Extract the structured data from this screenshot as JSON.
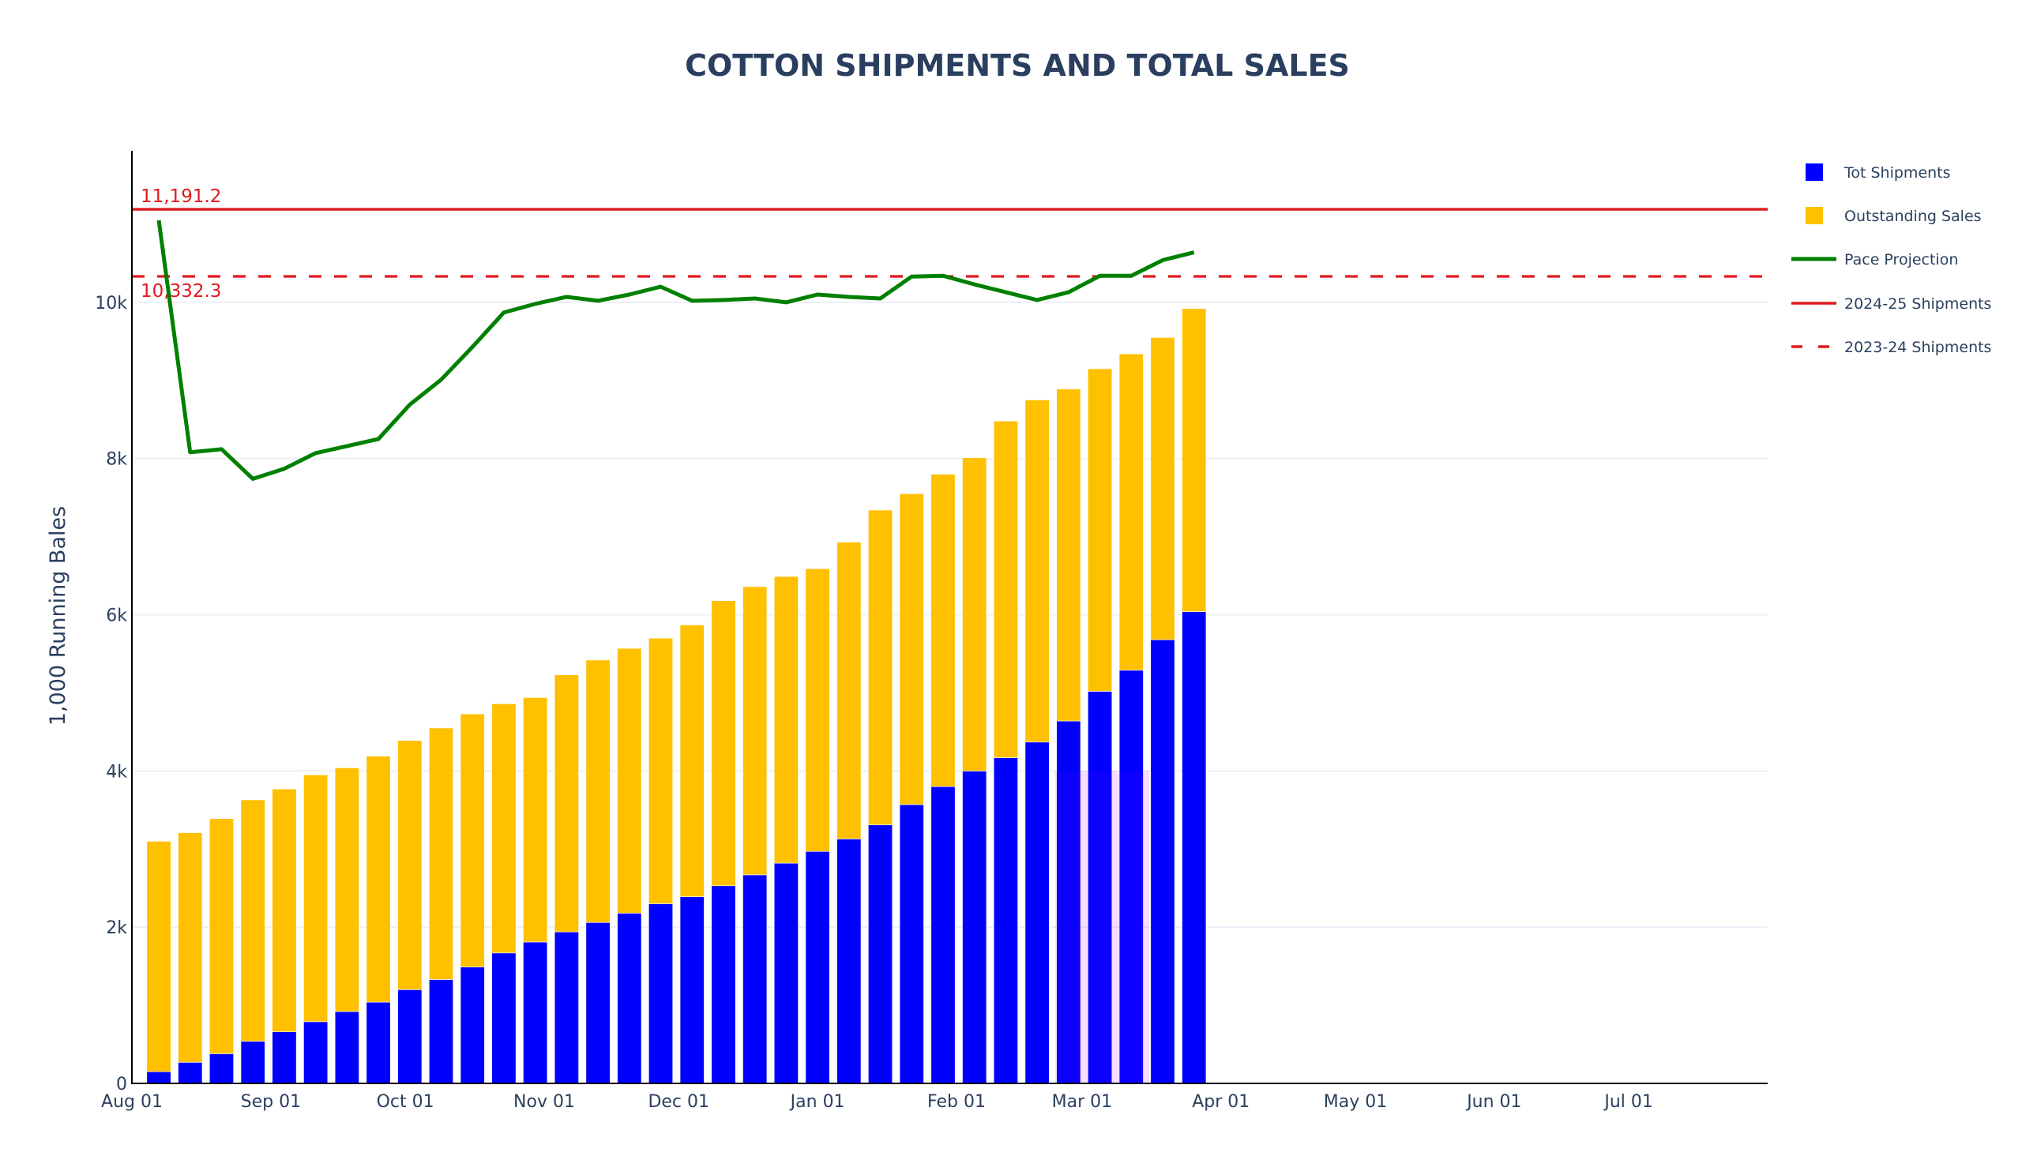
{
  "chart_data": {
    "type": "bar",
    "barmode": "stack",
    "title": "COTTON SHIPMENTS AND TOTAL SALES",
    "xlabel": "",
    "ylabel": "1,000 Running Bales",
    "xlim": [
      "2024-08-01",
      "2025-08-01"
    ],
    "ylim": [
      0,
      11940
    ],
    "grid": true,
    "legend_position": "right",
    "x_ticks": [
      {
        "date": "2024-08-01",
        "label": "Aug 01"
      },
      {
        "date": "2024-09-01",
        "label": "Sep 01"
      },
      {
        "date": "2024-10-01",
        "label": "Oct 01"
      },
      {
        "date": "2024-11-01",
        "label": "Nov 01"
      },
      {
        "date": "2024-12-01",
        "label": "Dec 01"
      },
      {
        "date": "2025-01-01",
        "label": "Jan 01"
      },
      {
        "date": "2025-02-01",
        "label": "Feb 01"
      },
      {
        "date": "2025-03-01",
        "label": "Mar 01"
      },
      {
        "date": "2025-04-01",
        "label": "Apr 01"
      },
      {
        "date": "2025-05-01",
        "label": "May 01"
      },
      {
        "date": "2025-06-01",
        "label": "Jun 01"
      },
      {
        "date": "2025-07-01",
        "label": "Jul 01"
      }
    ],
    "y_ticks": [
      {
        "value": 0,
        "label": "0"
      },
      {
        "value": 2000,
        "label": "2k"
      },
      {
        "value": 4000,
        "label": "4k"
      },
      {
        "value": 6000,
        "label": "6k"
      },
      {
        "value": 8000,
        "label": "8k"
      },
      {
        "value": 10000,
        "label": "10k"
      }
    ],
    "x": [
      "2024-08-07",
      "2024-08-14",
      "2024-08-21",
      "2024-08-28",
      "2024-09-04",
      "2024-09-11",
      "2024-09-18",
      "2024-09-25",
      "2024-10-02",
      "2024-10-09",
      "2024-10-16",
      "2024-10-23",
      "2024-10-30",
      "2024-11-06",
      "2024-11-13",
      "2024-11-20",
      "2024-11-27",
      "2024-12-04",
      "2024-12-11",
      "2024-12-18",
      "2024-12-25",
      "2025-01-01",
      "2025-01-08",
      "2025-01-15",
      "2025-01-22",
      "2025-01-29",
      "2025-02-05",
      "2025-02-12",
      "2025-02-19",
      "2025-02-26",
      "2025-03-05",
      "2025-03-12",
      "2025-03-19",
      "2025-03-26"
    ],
    "series": [
      {
        "name": "Tot Shipments",
        "kind": "bar",
        "color": "#0000ff",
        "values": [
          150,
          270,
          380,
          540,
          660,
          790,
          920,
          1040,
          1200,
          1330,
          1490,
          1670,
          1810,
          1940,
          2060,
          2180,
          2300,
          2390,
          2530,
          2670,
          2820,
          2970,
          3130,
          3310,
          3570,
          3800,
          4000,
          4170,
          4370,
          4640,
          5020,
          5290,
          5680,
          6040
        ]
      },
      {
        "name": "Outstanding Sales",
        "kind": "bar",
        "color": "#ffc000",
        "values": [
          2950,
          2940,
          3010,
          3090,
          3110,
          3160,
          3120,
          3150,
          3190,
          3220,
          3240,
          3190,
          3130,
          3290,
          3360,
          3390,
          3400,
          3480,
          3650,
          3690,
          3670,
          3620,
          3800,
          4030,
          3980,
          4000,
          4010,
          4310,
          4380,
          4250,
          4130,
          4050,
          3870,
          3880
        ]
      },
      {
        "name": "Pace Projection",
        "kind": "line",
        "color": "#008000",
        "values": [
          11050,
          8080,
          8120,
          7740,
          7870,
          8070,
          8160,
          8250,
          8690,
          9010,
          9430,
          9870,
          9980,
          10070,
          10020,
          10100,
          10200,
          10020,
          10030,
          10050,
          10000,
          10100,
          10070,
          10050,
          10330,
          10340,
          10230,
          10130,
          10030,
          10130,
          10340,
          10340,
          10540,
          10640
        ]
      },
      {
        "name": "2024-25 Shipments",
        "kind": "hline",
        "color": "#e0191e",
        "dash": "solid",
        "value": 11191.2,
        "label": "11,191.2"
      },
      {
        "name": "2023-24 Shipments",
        "kind": "hline",
        "color": "#e0191e",
        "dash": "dash",
        "value": 10332.3,
        "label": "10,332.3"
      }
    ],
    "highlight_region": {
      "x_start": "2025-02-23",
      "x_end": "2025-03-16",
      "y_start": 0,
      "y_end": 4000,
      "color": "#ff80ff",
      "opacity": 0.12
    }
  }
}
